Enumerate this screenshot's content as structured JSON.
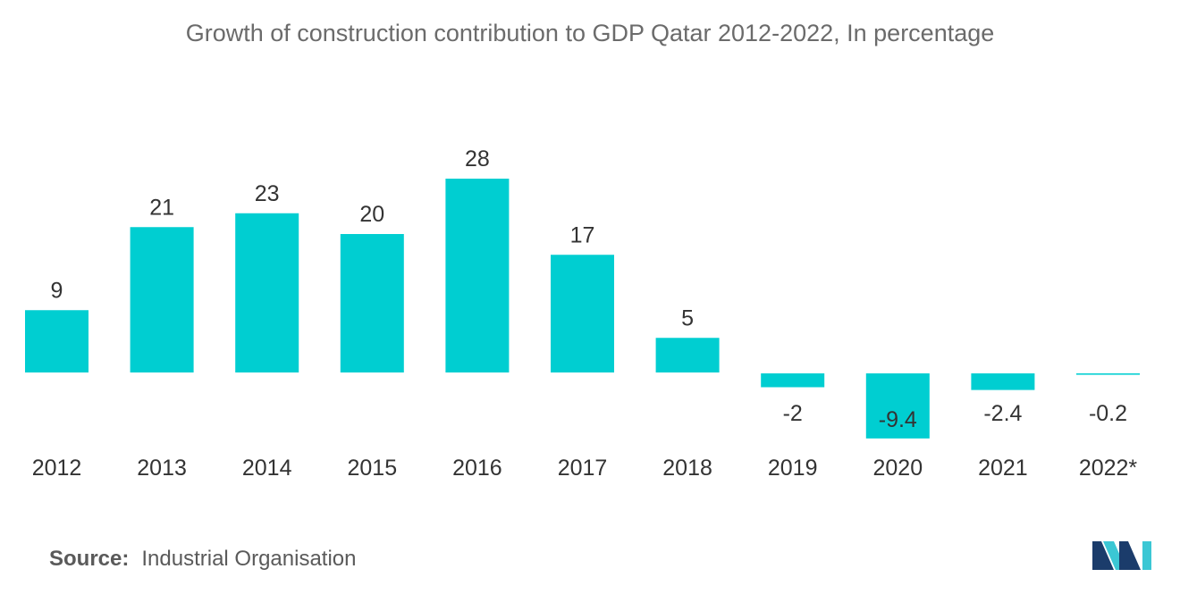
{
  "chart_data": {
    "type": "bar",
    "title": "Growth of construction contribution to GDP Qatar 2012-2022, In percentage",
    "categories": [
      "2012",
      "2013",
      "2014",
      "2015",
      "2016",
      "2017",
      "2018",
      "2019",
      "2020",
      "2021",
      "2022*"
    ],
    "values": [
      9,
      21,
      23,
      20,
      28,
      17,
      5,
      -2,
      -9.4,
      -2.4,
      -0.2
    ],
    "data_labels": [
      "9",
      "21",
      "23",
      "20",
      "28",
      "17",
      "5",
      "-2",
      "-9.4",
      "-2.4",
      "-0.2"
    ],
    "xlabel": "",
    "ylabel": "",
    "ylim": [
      -10,
      28
    ],
    "grid": false,
    "legend": "none",
    "bar_color": "#00ced1"
  },
  "source": {
    "label": "Source:",
    "value": "Industrial Organisation"
  },
  "logo": {
    "icon": "mordor-intelligence-logo-icon",
    "color_dark": "#1b3c6b",
    "color_light": "#3bc7d4"
  }
}
